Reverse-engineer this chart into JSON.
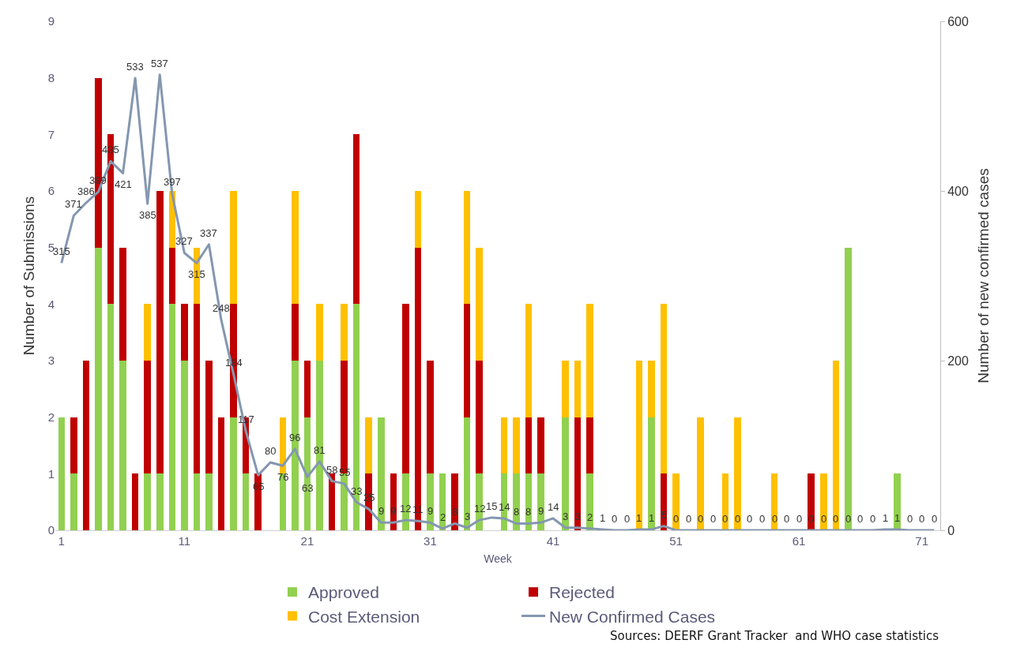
{
  "chart_data": {
    "type": "bar",
    "stacked": true,
    "xlabel": "Week",
    "ylabel": "Number of Submissions",
    "y2label": "Number of new confirmed cases",
    "x": [
      1,
      2,
      3,
      4,
      5,
      6,
      7,
      8,
      9,
      10,
      11,
      12,
      13,
      14,
      15,
      16,
      17,
      18,
      19,
      20,
      21,
      22,
      23,
      24,
      25,
      26,
      27,
      28,
      29,
      30,
      31,
      32,
      33,
      34,
      35,
      36,
      37,
      38,
      39,
      40,
      41,
      42,
      43,
      44,
      45,
      46,
      47,
      48,
      49,
      50,
      51,
      52,
      53,
      54,
      55,
      56,
      57,
      58,
      59,
      60,
      61,
      62,
      63,
      64,
      65,
      66,
      67,
      68,
      69,
      70,
      71,
      72
    ],
    "xlim": [
      0.5,
      72.5
    ],
    "xticks": [
      1,
      11,
      21,
      31,
      41,
      51,
      61,
      71
    ],
    "ylim": [
      0,
      9
    ],
    "yticks": [
      0,
      1,
      2,
      3,
      4,
      5,
      6,
      7,
      8,
      9
    ],
    "y2lim": [
      0,
      600
    ],
    "y2ticks": [
      0,
      200,
      400,
      600
    ],
    "legend": "bottom",
    "series": [
      {
        "name": "Approved",
        "color": "#92d050",
        "values": [
          2,
          1,
          0,
          5,
          4,
          3,
          0,
          1,
          1,
          4,
          3,
          1,
          1,
          0,
          2,
          1,
          0,
          0,
          1,
          3,
          2,
          3,
          0,
          1,
          4,
          0,
          2,
          0,
          1,
          0,
          1,
          1,
          0,
          2,
          1,
          0,
          1,
          1,
          1,
          1,
          0,
          2,
          0,
          1,
          0,
          0,
          0,
          0,
          2,
          0,
          0,
          0,
          0,
          0,
          0,
          0,
          0,
          0,
          0,
          0,
          0,
          0,
          0,
          0,
          5,
          0,
          0,
          0,
          1,
          0,
          0,
          0
        ]
      },
      {
        "name": "Rejected",
        "color": "#c00000",
        "values": [
          0,
          1,
          3,
          3,
          3,
          2,
          1,
          2,
          5,
          1,
          1,
          3,
          2,
          2,
          2,
          1,
          1,
          0,
          0,
          1,
          1,
          0,
          1,
          2,
          3,
          1,
          0,
          1,
          3,
          5,
          2,
          0,
          1,
          2,
          2,
          0,
          0,
          0,
          1,
          1,
          0,
          0,
          2,
          1,
          0,
          0,
          0,
          0,
          0,
          1,
          0,
          0,
          0,
          0,
          0,
          0,
          0,
          0,
          0,
          0,
          0,
          1,
          0,
          0,
          0,
          0,
          0,
          0,
          0,
          0,
          0,
          0
        ]
      },
      {
        "name": "Cost Extension",
        "color": "#ffc000",
        "values": [
          0,
          0,
          0,
          0,
          0,
          0,
          0,
          1,
          0,
          1,
          0,
          1,
          0,
          0,
          2,
          0,
          0,
          0,
          1,
          2,
          0,
          1,
          0,
          1,
          0,
          1,
          0,
          0,
          0,
          1,
          0,
          0,
          0,
          2,
          2,
          0,
          1,
          1,
          2,
          0,
          0,
          1,
          1,
          2,
          0,
          0,
          0,
          3,
          1,
          3,
          1,
          0,
          2,
          0,
          1,
          2,
          0,
          0,
          1,
          0,
          0,
          0,
          1,
          3,
          0,
          0,
          0,
          0,
          0,
          0,
          0,
          0
        ]
      },
      {
        "name": "New Confirmed Cases",
        "type": "line",
        "axis": "y2",
        "color": "#8497b0",
        "marker": "none",
        "line_style": "solid",
        "data_labels": true,
        "values": [
          315,
          371,
          386,
          399,
          435,
          421,
          533,
          385,
          537,
          397,
          327,
          315,
          337,
          248,
          184,
          117,
          65,
          80,
          76,
          96,
          63,
          81,
          58,
          55,
          33,
          25,
          9,
          9,
          12,
          11,
          9,
          2,
          8,
          3,
          12,
          15,
          14,
          8,
          8,
          9,
          14,
          3,
          3,
          2,
          1,
          0,
          0,
          1,
          1,
          5,
          0,
          0,
          0,
          0,
          0,
          0,
          0,
          0,
          0,
          0,
          0,
          0,
          0,
          0,
          0,
          0,
          0,
          1,
          1,
          0,
          0,
          0
        ]
      }
    ],
    "annotations": [
      {
        "text": "Sources: DEERF Grant Tracker  and WHO case statistics"
      }
    ]
  }
}
